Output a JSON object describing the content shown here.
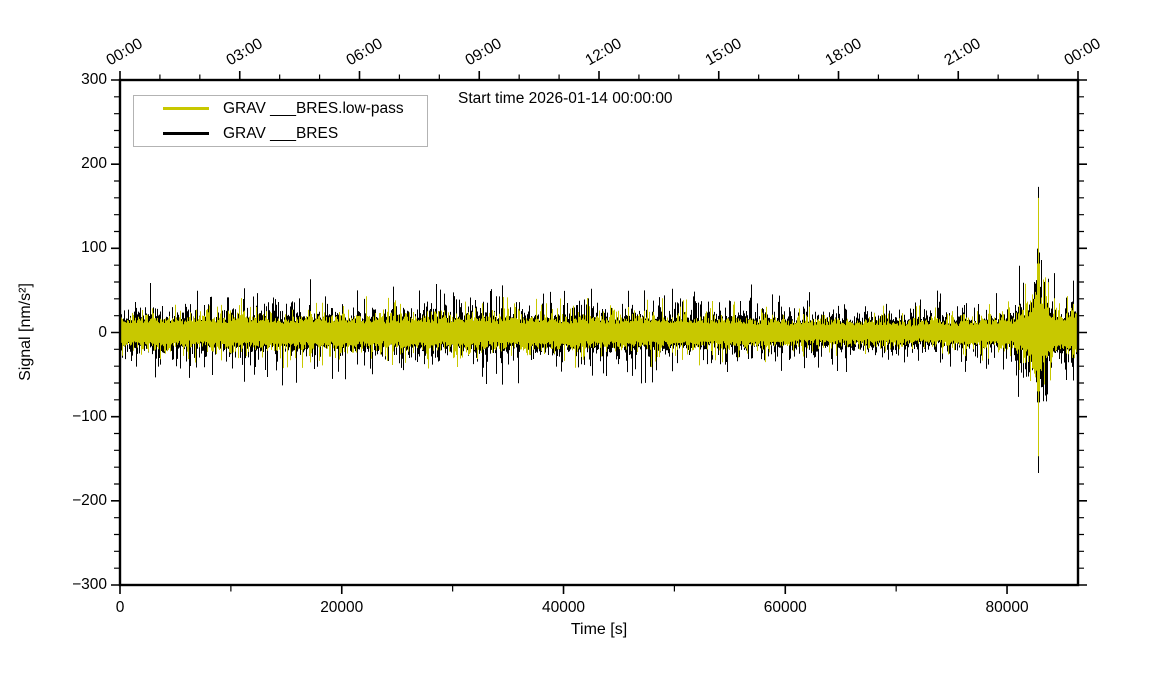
{
  "chart_data": {
    "type": "line",
    "title": "Start time 2026-01-14 00:00:00",
    "xlabel": "Time [s]",
    "ylabel": "Signal [nm/s²]",
    "xlim": [
      0,
      86400
    ],
    "ylim": [
      -300,
      300
    ],
    "grid": false,
    "x_ticks_bottom": {
      "major": [
        0,
        20000,
        40000,
        60000,
        80000
      ],
      "labels": [
        "0",
        "20000",
        "40000",
        "60000",
        "80000"
      ],
      "minor_interval": 10000
    },
    "x_ticks_top": {
      "major_interval_s": 10800,
      "minor_interval_s": 3600,
      "labels": [
        "00:00",
        "03:00",
        "06:00",
        "09:00",
        "12:00",
        "15:00",
        "18:00",
        "21:00",
        "00:00"
      ]
    },
    "y_ticks": {
      "major": [
        300,
        200,
        100,
        0,
        -100,
        -200,
        -300
      ],
      "labels": [
        "300",
        "200",
        "100",
        "0",
        "−100",
        "−200",
        "−300"
      ],
      "minor_interval": 20
    },
    "legend": {
      "position": "upper-left",
      "entries": [
        {
          "label": "GRAV ___BRES.low-pass",
          "color": "#c8c800"
        },
        {
          "label": "GRAV ___BRES",
          "color": "#000000"
        }
      ]
    },
    "series": [
      {
        "name": "GRAV ___BRES",
        "color": "#000000",
        "description": "raw broadband noise, half-amplitude envelope in nm/s^2 vs time in s",
        "envelope": [
          [
            0,
            25
          ],
          [
            6000,
            25
          ],
          [
            12000,
            26
          ],
          [
            20000,
            26
          ],
          [
            28000,
            27
          ],
          [
            36000,
            26
          ],
          [
            44000,
            26
          ],
          [
            52000,
            25
          ],
          [
            56000,
            24
          ],
          [
            60000,
            22
          ],
          [
            64000,
            21
          ],
          [
            68000,
            20
          ],
          [
            72000,
            20
          ],
          [
            76000,
            21
          ],
          [
            79000,
            22
          ],
          [
            81000,
            24
          ],
          [
            86400,
            26
          ]
        ]
      },
      {
        "name": "GRAV ___BRES.low-pass",
        "color": "#c8c800",
        "description": "low-passed trace plotted on top, half-amplitude envelope in nm/s^2 vs time in s",
        "envelope": [
          [
            0,
            18
          ],
          [
            6000,
            18
          ],
          [
            12000,
            19
          ],
          [
            20000,
            19
          ],
          [
            28000,
            20
          ],
          [
            36000,
            19
          ],
          [
            44000,
            19
          ],
          [
            52000,
            18
          ],
          [
            56000,
            17
          ],
          [
            60000,
            16
          ],
          [
            64000,
            15
          ],
          [
            68000,
            14
          ],
          [
            72000,
            14
          ],
          [
            76000,
            15
          ],
          [
            79000,
            16
          ],
          [
            81000,
            18
          ],
          [
            86400,
            19
          ]
        ]
      }
    ],
    "events": [
      {
        "t": 82900,
        "amplitude": 34,
        "sigma": 1100
      },
      {
        "t": 81300,
        "amplitude": 7,
        "sigma": 500
      },
      {
        "t": 85900,
        "amplitude": 11,
        "sigma": 650
      }
    ],
    "main_spike": {
      "t": 82900,
      "black_max": 173,
      "black_min": -167,
      "yellow_max": 160,
      "yellow_min": -147,
      "shoulder_black": 95,
      "shoulder_yellow": 82
    },
    "spikes": [
      {
        "t": 21400,
        "max": 50,
        "min": -38
      },
      {
        "t": 34500,
        "max": 56,
        "min": -62
      },
      {
        "t": 49800,
        "max": 52,
        "min": -46
      }
    ],
    "noise_seed": 1337
  }
}
